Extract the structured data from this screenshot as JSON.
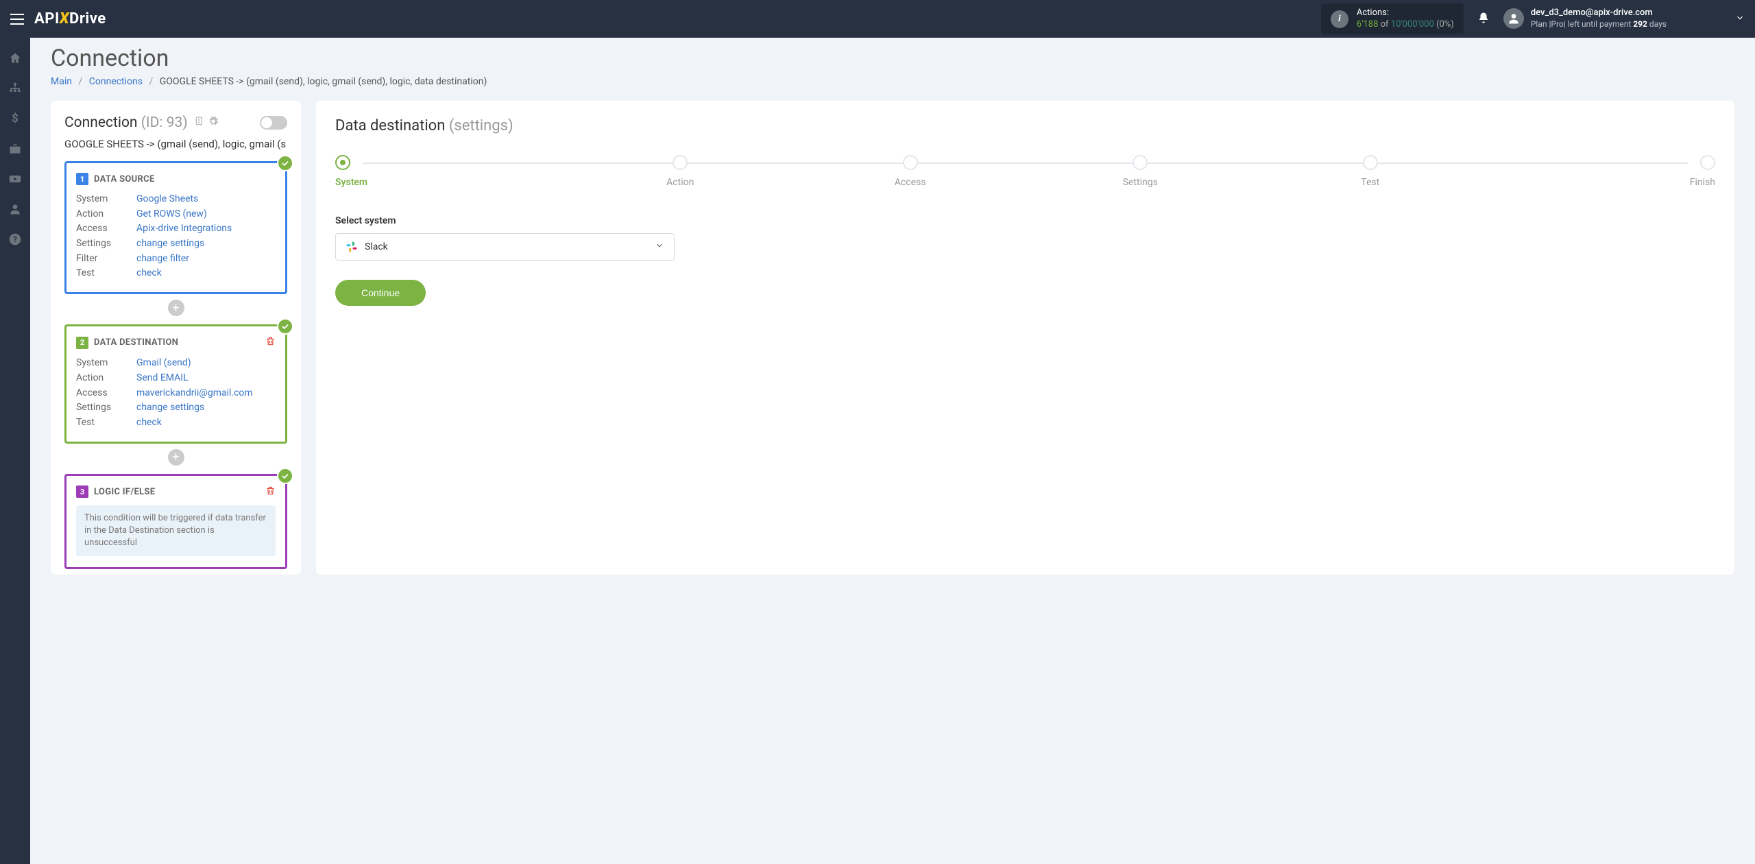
{
  "header": {
    "logo_pre": "API",
    "logo_x": "X",
    "logo_post": "Drive",
    "actions_label": "Actions:",
    "actions_used": "6'188",
    "actions_of": "of",
    "actions_total": "10'000'000",
    "actions_pct": "(0%)",
    "user_email": "dev_d3_demo@apix-drive.com",
    "user_plan_pre": "Plan |Pro| left until payment ",
    "user_plan_days": "292",
    "user_plan_post": " days"
  },
  "page": {
    "title": "Connection",
    "breadcrumbs": {
      "main": "Main",
      "connections": "Connections",
      "current": "GOOGLE SHEETS -> (gmail (send), logic, gmail (send), logic, data destination)"
    }
  },
  "connection": {
    "title_pre": "Connection ",
    "title_id": "(ID: 93)",
    "subtitle": "GOOGLE SHEETS -> (gmail (send), logic, gmail (s",
    "cards": [
      {
        "num": "1",
        "title": "DATA SOURCE",
        "color": "blue",
        "checked": true,
        "rows": [
          {
            "label": "System",
            "value": "Google Sheets"
          },
          {
            "label": "Action",
            "value": "Get ROWS (new)"
          },
          {
            "label": "Access",
            "value": "Apix-drive Integrations"
          },
          {
            "label": "Settings",
            "value": "change settings"
          },
          {
            "label": "Filter",
            "value": "change filter"
          },
          {
            "label": "Test",
            "value": "check"
          }
        ]
      },
      {
        "num": "2",
        "title": "DATA DESTINATION",
        "color": "green",
        "checked": true,
        "deletable": true,
        "rows": [
          {
            "label": "System",
            "value": "Gmail (send)"
          },
          {
            "label": "Action",
            "value": "Send EMAIL"
          },
          {
            "label": "Access",
            "value": "maverickandrii@gmail.com"
          },
          {
            "label": "Settings",
            "value": "change settings"
          },
          {
            "label": "Test",
            "value": "check"
          }
        ]
      },
      {
        "num": "3",
        "title": "LOGIC IF/ELSE",
        "color": "purple",
        "checked": true,
        "deletable": true,
        "info": "This condition will be triggered if data transfer in the Data Destination section is unsuccessful"
      }
    ]
  },
  "destination": {
    "title": "Data destination ",
    "title_sub": "(settings)",
    "steps": [
      "System",
      "Action",
      "Access",
      "Settings",
      "Test",
      "Finish"
    ],
    "active_step": 0,
    "select_label": "Select system",
    "select_value": "Slack",
    "continue": "Continue"
  }
}
